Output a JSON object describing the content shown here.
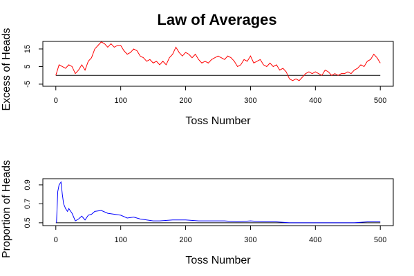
{
  "chart_data": [
    {
      "type": "line",
      "title": "Law of Averages",
      "xlabel": "Toss Number",
      "ylabel": "Excess of Heads",
      "xlim": [
        -20,
        520
      ],
      "ylim": [
        -6.2,
        19.3
      ],
      "xticks": [
        0,
        100,
        200,
        300,
        400,
        500
      ],
      "yticks": [
        -5,
        5,
        15
      ],
      "hline": 0,
      "color": "#ff0000",
      "x": [
        0,
        5,
        10,
        15,
        20,
        25,
        30,
        35,
        40,
        45,
        50,
        55,
        60,
        65,
        70,
        75,
        80,
        85,
        90,
        95,
        100,
        105,
        110,
        115,
        120,
        125,
        130,
        135,
        140,
        145,
        150,
        155,
        160,
        165,
        170,
        175,
        180,
        185,
        190,
        195,
        200,
        205,
        210,
        215,
        220,
        225,
        230,
        235,
        240,
        245,
        250,
        255,
        260,
        265,
        270,
        275,
        280,
        285,
        290,
        295,
        300,
        305,
        310,
        315,
        320,
        325,
        330,
        335,
        340,
        345,
        350,
        355,
        360,
        365,
        370,
        375,
        380,
        385,
        390,
        395,
        400,
        405,
        410,
        415,
        420,
        425,
        430,
        435,
        440,
        445,
        450,
        455,
        460,
        465,
        470,
        475,
        480,
        485,
        490,
        495,
        500
      ],
      "values": [
        0,
        6,
        5,
        4,
        6,
        5,
        1,
        3,
        6,
        3,
        8,
        10,
        15,
        17,
        19,
        18,
        16,
        18,
        16,
        17,
        17,
        14,
        12,
        13,
        15,
        14,
        11,
        10,
        8,
        9,
        7,
        8,
        6,
        8,
        6,
        10,
        12,
        16,
        13,
        11,
        13,
        12,
        10,
        12,
        9,
        7,
        8,
        7,
        9,
        10,
        11,
        10,
        9,
        11,
        10,
        8,
        5,
        6,
        9,
        8,
        11,
        7,
        8,
        9,
        6,
        5,
        7,
        5,
        6,
        3,
        4,
        2,
        -2,
        -3,
        -2,
        -3,
        -1,
        1,
        2,
        1,
        2,
        1,
        0,
        3,
        2,
        0,
        1,
        0,
        1,
        1,
        2,
        1,
        3,
        4,
        6,
        5,
        8,
        9,
        12,
        10,
        7
      ]
    },
    {
      "type": "line",
      "xlabel": "Toss Number",
      "ylabel": "Proportion of Heads",
      "xlim": [
        -20,
        520
      ],
      "ylim": [
        0.47,
        0.965
      ],
      "xticks": [
        0,
        100,
        200,
        300,
        400,
        500
      ],
      "yticks": [
        0.5,
        0.7,
        0.9
      ],
      "hline": 0.5,
      "color": "#0000ff",
      "x": [
        1,
        3,
        5,
        8,
        10,
        12,
        15,
        18,
        20,
        25,
        30,
        35,
        40,
        45,
        50,
        55,
        60,
        70,
        80,
        90,
        100,
        110,
        120,
        130,
        140,
        150,
        160,
        180,
        190,
        200,
        220,
        240,
        260,
        280,
        300,
        320,
        340,
        360,
        380,
        400,
        420,
        440,
        460,
        480,
        500
      ],
      "values": [
        0.5,
        0.83,
        0.9,
        0.93,
        0.8,
        0.7,
        0.65,
        0.62,
        0.65,
        0.6,
        0.52,
        0.54,
        0.57,
        0.53,
        0.58,
        0.59,
        0.62,
        0.63,
        0.6,
        0.59,
        0.58,
        0.55,
        0.56,
        0.54,
        0.53,
        0.52,
        0.52,
        0.53,
        0.53,
        0.53,
        0.52,
        0.52,
        0.52,
        0.51,
        0.52,
        0.51,
        0.51,
        0.5,
        0.5,
        0.5,
        0.5,
        0.5,
        0.5,
        0.51,
        0.51
      ]
    }
  ]
}
